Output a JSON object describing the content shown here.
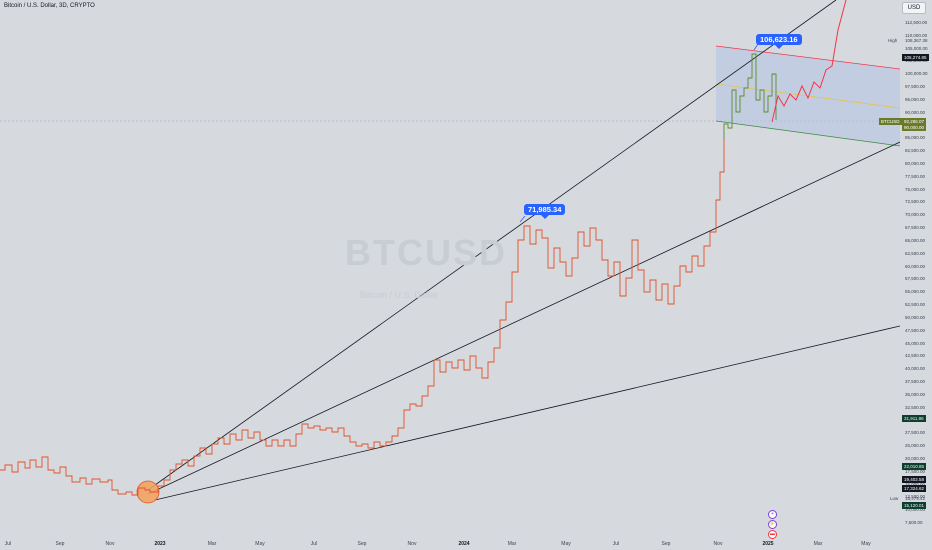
{
  "header": {
    "title": "Bitcoin / U.S. Dollar, 3D, CRYPTO",
    "currency": "USD"
  },
  "watermark": {
    "symbol": "BTCUSD",
    "sub": "Bitcoin / U.S. Dollar"
  },
  "price_axis": {
    "ticks": [
      "112,500.00",
      "110,000.00",
      "105,000.00",
      "102,500.00",
      "100,000.00",
      "97,500.00",
      "95,000.00",
      "90,000.00",
      "87,500.00",
      "85,000.00",
      "82,500.00",
      "80,000.00",
      "77,500.00",
      "75,000.00",
      "72,500.00",
      "70,000.00",
      "67,500.00",
      "65,000.00",
      "62,500.00",
      "60,000.00",
      "57,500.00",
      "55,000.00",
      "52,500.00",
      "50,000.00",
      "47,500.00",
      "45,000.00",
      "42,500.00",
      "40,000.00",
      "37,500.00",
      "35,000.00",
      "32,500.00",
      "30,000.00",
      "27,500.00",
      "25,000.00",
      "20,000.00",
      "17,500.00",
      "15,000.00",
      "12,500.00",
      "10,000.00",
      "7,500.00"
    ],
    "tags": {
      "high_value": "108,367.38",
      "high_label": "High",
      "mark1": "105,274.85",
      "current_symbol": "BTCUSD",
      "current": "92,286.07",
      "current_sub": "90,000.00",
      "t34k": "31,911.86",
      "t22k": "22,010.85",
      "t19k": "19,402.58",
      "t17k": "17,324.62",
      "low_value": "15,479.42",
      "low_label": "Low",
      "t15k": "15,120.01"
    }
  },
  "time_axis": {
    "labels": [
      "Jul",
      "Sep",
      "Nov",
      "2023",
      "Mar",
      "May",
      "Jul",
      "Sep",
      "Nov",
      "2024",
      "Mar",
      "May",
      "Jul",
      "Sep",
      "Nov",
      "2025",
      "Mar",
      "May"
    ]
  },
  "callouts": {
    "peak_2024": "71,985.34",
    "peak_2025": "106,623.16"
  },
  "colors": {
    "background": "#d6d9de",
    "price_line": "#e0532b",
    "recent_line": "#5b8a2e",
    "projection": "#f23645",
    "channel_fill": "#b4c2e6",
    "callout": "#2962ff"
  },
  "chart_data": {
    "type": "line",
    "title": "Bitcoin / U.S. Dollar, 3D, CRYPTO",
    "ylim": [
      7500,
      115000
    ],
    "series": [
      {
        "name": "BTCUSD",
        "x": [
          "2022-06",
          "2022-07",
          "2022-08",
          "2022-09",
          "2022-10",
          "2022-11",
          "2022-12",
          "2023-01",
          "2023-02",
          "2023-03",
          "2023-04",
          "2023-05",
          "2023-06",
          "2023-07",
          "2023-08",
          "2023-09",
          "2023-10",
          "2023-11",
          "2023-12",
          "2024-01",
          "2024-02",
          "2024-03",
          "2024-04",
          "2024-05",
          "2024-06",
          "2024-07",
          "2024-08",
          "2024-09",
          "2024-10",
          "2024-11",
          "2024-12",
          "2025-01"
        ],
        "values": [
          20000,
          21500,
          22500,
          20000,
          19500,
          17000,
          16800,
          21500,
          23000,
          27500,
          29500,
          27500,
          30500,
          29500,
          27000,
          26500,
          28000,
          36000,
          42000,
          42500,
          51000,
          71000,
          64000,
          67500,
          64000,
          61000,
          59000,
          62000,
          68000,
          90000,
          97000,
          94000
        ]
      }
    ],
    "annotations": [
      "71,985.34",
      "106,623.16"
    ]
  }
}
